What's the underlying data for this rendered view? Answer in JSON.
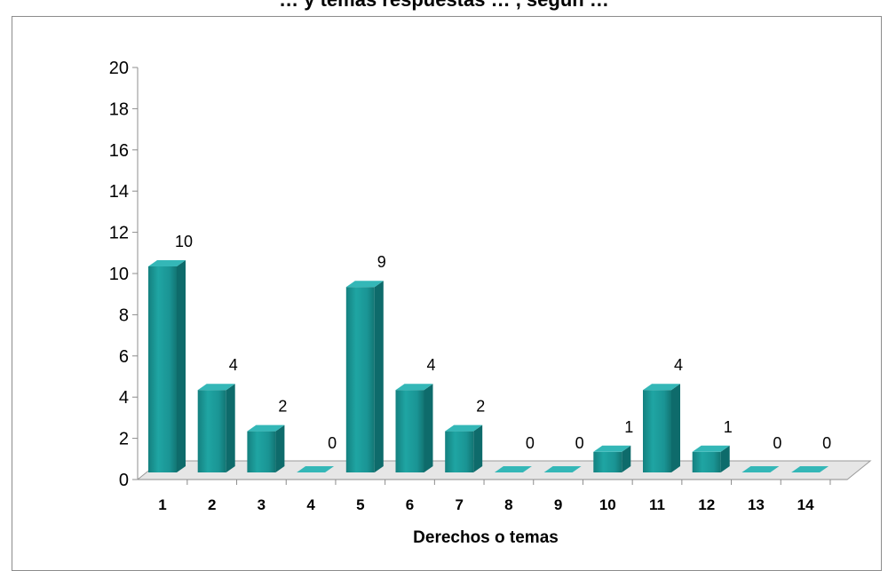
{
  "chart_data": {
    "type": "bar",
    "title": "… y temas respuestas … , según …",
    "xlabel": "Derechos o temas",
    "ylabel": "",
    "categories": [
      "1",
      "2",
      "3",
      "4",
      "5",
      "6",
      "7",
      "8",
      "9",
      "10",
      "11",
      "12",
      "13",
      "14"
    ],
    "values": [
      10,
      4,
      2,
      0,
      9,
      4,
      2,
      0,
      0,
      1,
      4,
      1,
      0,
      0
    ],
    "ylim": [
      0,
      20
    ],
    "yticks": [
      0,
      2,
      4,
      6,
      8,
      10,
      12,
      14,
      16,
      18,
      20
    ],
    "grid": false,
    "legend": "none",
    "style": "3d-column",
    "colors": {
      "bar_front": "#1a9c9c",
      "bar_side": "#0e6b6b",
      "bar_top": "#34b7b7",
      "floor": "#e6e6e6"
    }
  }
}
